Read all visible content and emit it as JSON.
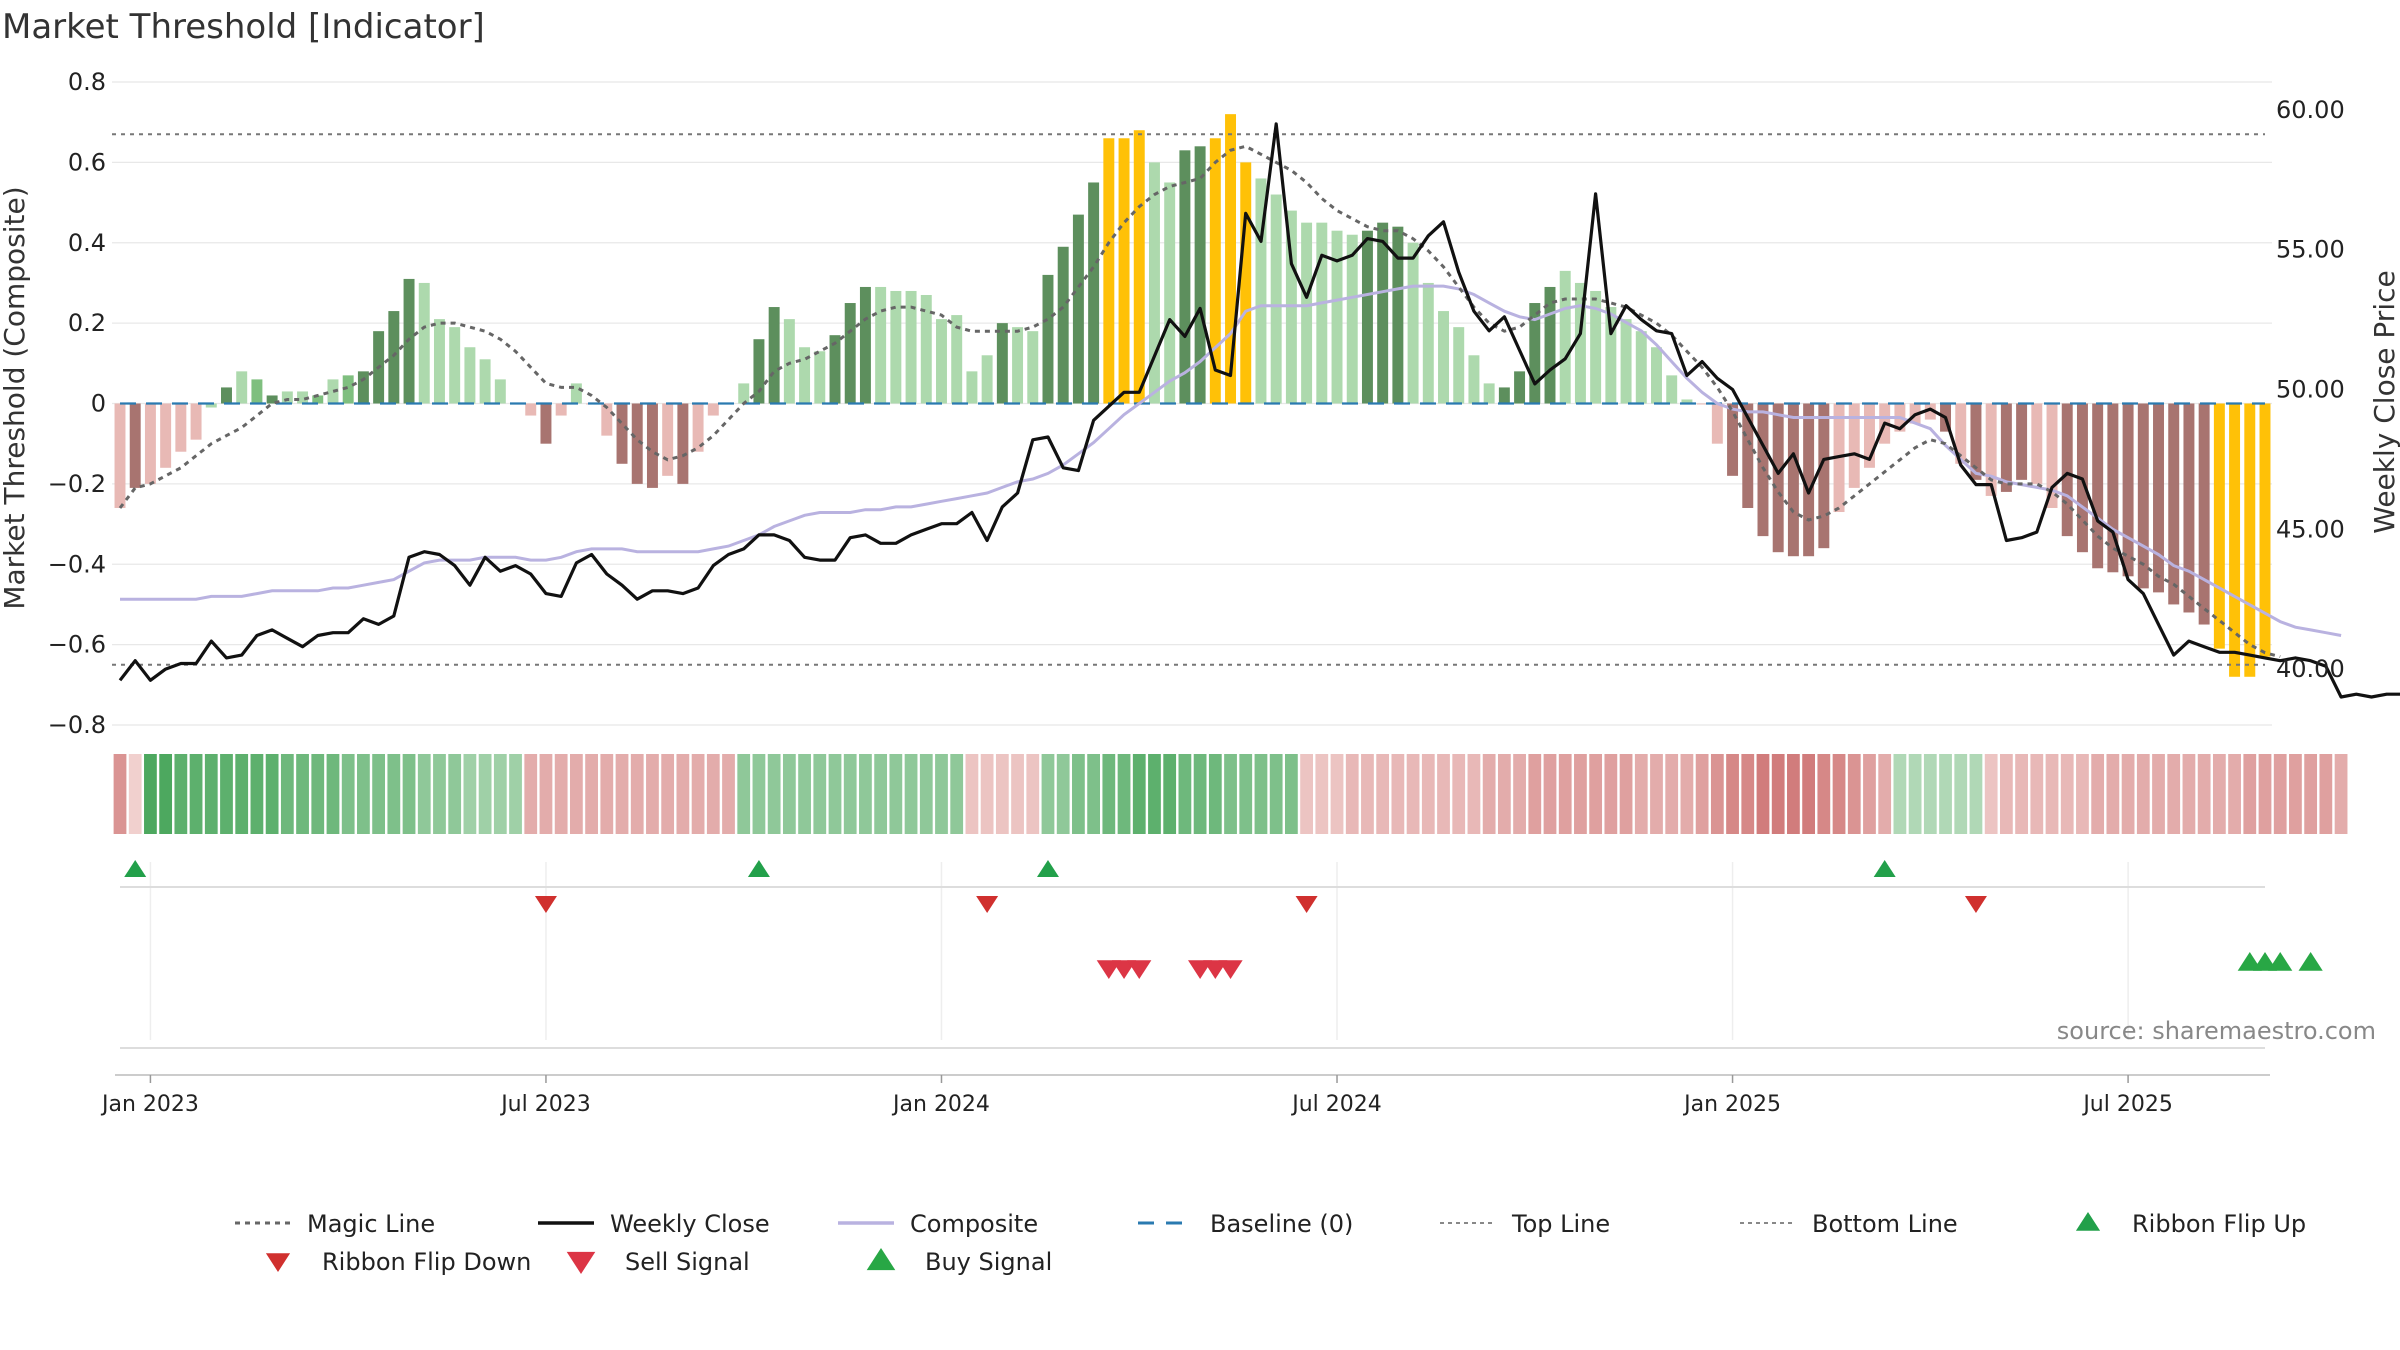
{
  "chart_data": {
    "type": "bar",
    "title": "Market Threshold [Indicator]",
    "ylabel_left": "Market Threshold (Composite)",
    "ylabel_right": "Weekly Close Price",
    "ylim_left": [
      -0.8,
      0.8
    ],
    "ylim_right": [
      38.0,
      61.0
    ],
    "yticks_left": [
      "0.8",
      "0.6",
      "0.4",
      "0.2",
      "0",
      "−0.2",
      "−0.4",
      "−0.6",
      "−0.8"
    ],
    "yticks_right": [
      "60.00",
      "55.00",
      "50.00",
      "45.00",
      "40.00"
    ],
    "xticks": [
      {
        "label": "Jan 2023",
        "index": 2
      },
      {
        "label": "Jul 2023",
        "index": 28
      },
      {
        "label": "Jan 2024",
        "index": 54
      },
      {
        "label": "Jul 2024",
        "index": 80
      },
      {
        "label": "Jan 2025",
        "index": 106
      },
      {
        "label": "Jul 2025",
        "index": 132
      }
    ],
    "top_line": 0.67,
    "bottom_line": -0.65,
    "composite": [
      -0.26,
      -0.21,
      -0.2,
      -0.16,
      -0.12,
      -0.09,
      -0.01,
      0.04,
      0.08,
      0.06,
      0.02,
      0.03,
      0.03,
      0.02,
      0.06,
      0.07,
      0.08,
      0.18,
      0.23,
      0.31,
      0.3,
      0.21,
      0.19,
      0.14,
      0.11,
      0.06,
      0.0,
      -0.03,
      -0.1,
      -0.03,
      0.05,
      0.0,
      -0.08,
      -0.15,
      -0.2,
      -0.21,
      -0.18,
      -0.2,
      -0.12,
      -0.03,
      0.0,
      0.05,
      0.16,
      0.24,
      0.21,
      0.14,
      0.13,
      0.17,
      0.25,
      0.29,
      0.29,
      0.28,
      0.28,
      0.27,
      0.21,
      0.22,
      0.08,
      0.12,
      0.2,
      0.19,
      0.18,
      0.32,
      0.39,
      0.47,
      0.55,
      0.66,
      0.66,
      0.68,
      0.6,
      0.55,
      0.63,
      0.64,
      0.66,
      0.72,
      0.6,
      0.56,
      0.52,
      0.48,
      0.45,
      0.45,
      0.43,
      0.42,
      0.43,
      0.45,
      0.44,
      0.4,
      0.3,
      0.23,
      0.19,
      0.12,
      0.05,
      0.04,
      0.08,
      0.25,
      0.29,
      0.33,
      0.3,
      0.28,
      0.24,
      0.21,
      0.18,
      0.14,
      0.07,
      0.01,
      0.0,
      -0.1,
      -0.18,
      -0.26,
      -0.33,
      -0.37,
      -0.38,
      -0.38,
      -0.36,
      -0.27,
      -0.21,
      -0.16,
      -0.1,
      -0.07,
      -0.05,
      -0.04,
      -0.07,
      -0.15,
      -0.19,
      -0.23,
      -0.22,
      -0.19,
      -0.2,
      -0.26,
      -0.33,
      -0.37,
      -0.41,
      -0.42,
      -0.43,
      -0.46,
      -0.47,
      -0.5,
      -0.52,
      -0.55,
      -0.61,
      -0.68,
      -0.68,
      -0.63
    ],
    "bar_classes": [
      "nl",
      "nd",
      "nl",
      "nl",
      "nl",
      "nl",
      "pl",
      "pd",
      "pl",
      "pm",
      "pd",
      "pl",
      "pl",
      "pm",
      "pl",
      "pm",
      "pd",
      "pd",
      "pd",
      "pd",
      "pl",
      "pl",
      "pl",
      "pl",
      "pl",
      "pl",
      "pl",
      "nl",
      "nd",
      "nl",
      "pl",
      "nl",
      "nl",
      "nd",
      "nd",
      "nd",
      "nl",
      "nd",
      "nl",
      "nl",
      "pl",
      "pl",
      "pd",
      "pd",
      "pl",
      "pl",
      "pl",
      "pd",
      "pd",
      "pd",
      "pl",
      "pl",
      "pl",
      "pl",
      "pl",
      "pl",
      "pl",
      "pl",
      "pd",
      "pl",
      "pl",
      "pd",
      "pd",
      "pd",
      "pd",
      "y",
      "y",
      "y",
      "pl",
      "pl",
      "pd",
      "pd",
      "y",
      "y",
      "y",
      "pl",
      "pl",
      "pl",
      "pl",
      "pl",
      "pl",
      "pl",
      "pd",
      "pd",
      "pd",
      "pl",
      "pl",
      "pl",
      "pl",
      "pl",
      "pl",
      "pd",
      "pd",
      "pd",
      "pd",
      "pl",
      "pl",
      "pl",
      "pl",
      "pl",
      "pl",
      "pl",
      "pl",
      "pl",
      "nl",
      "nl",
      "nd",
      "nd",
      "nd",
      "nd",
      "nd",
      "nd",
      "nd",
      "nl",
      "nl",
      "nl",
      "nl",
      "nl",
      "nl",
      "nl",
      "nd",
      "nl",
      "nd",
      "nl",
      "nd",
      "nd",
      "nl",
      "nl",
      "nd",
      "nd",
      "nd",
      "nd",
      "nd",
      "nd",
      "nd",
      "nd",
      "nd",
      "nd",
      "y",
      "y",
      "y",
      "y"
    ],
    "weekly_close": [
      39.6,
      40.3,
      39.6,
      40.0,
      40.2,
      40.2,
      41.0,
      40.4,
      40.5,
      41.2,
      41.4,
      41.1,
      40.8,
      41.2,
      41.3,
      41.3,
      41.8,
      41.6,
      41.9,
      44.0,
      44.2,
      44.1,
      43.7,
      43.0,
      44.0,
      43.5,
      43.7,
      43.4,
      42.7,
      42.6,
      43.8,
      44.1,
      43.4,
      43.0,
      42.5,
      42.8,
      42.8,
      42.7,
      42.9,
      43.7,
      44.1,
      44.3,
      44.8,
      44.8,
      44.6,
      44.0,
      43.9,
      43.9,
      44.7,
      44.8,
      44.5,
      44.5,
      44.8,
      45.0,
      45.2,
      45.2,
      45.6,
      44.6,
      45.8,
      46.3,
      48.2,
      48.3,
      47.2,
      47.1,
      48.9,
      49.4,
      49.9,
      49.9,
      51.2,
      52.5,
      51.9,
      52.9,
      50.7,
      50.5,
      56.3,
      55.3,
      59.5,
      54.5,
      53.3,
      54.8,
      54.6,
      54.8,
      55.4,
      55.3,
      54.7,
      54.7,
      55.5,
      56.0,
      54.2,
      52.8,
      52.1,
      52.6,
      51.4,
      50.2,
      50.7,
      51.1,
      52.0,
      57.0,
      52.0,
      53.0,
      52.5,
      52.1,
      52.0,
      50.5,
      51.0,
      50.4,
      50.0,
      49.0,
      48.0,
      47.0,
      47.7,
      46.3,
      47.5,
      47.6,
      47.7,
      47.5,
      48.8,
      48.6,
      49.1,
      49.3,
      49.0,
      47.3,
      46.6,
      46.6,
      44.6,
      44.7,
      44.9,
      46.5,
      47.0,
      46.8,
      45.3,
      44.9,
      43.2,
      42.7,
      41.6,
      40.5,
      41.0,
      40.8,
      40.6,
      40.6,
      40.5,
      40.4,
      40.3,
      40.4,
      40.3,
      40.1,
      39.0,
      39.1,
      39.0,
      39.1,
      39.1
    ],
    "magic_line": [
      -0.26,
      -0.21,
      -0.2,
      -0.18,
      -0.16,
      -0.13,
      -0.1,
      -0.08,
      -0.06,
      -0.03,
      0.0,
      0.01,
      0.01,
      0.02,
      0.03,
      0.04,
      0.06,
      0.09,
      0.12,
      0.16,
      0.19,
      0.2,
      0.2,
      0.19,
      0.18,
      0.16,
      0.13,
      0.09,
      0.05,
      0.04,
      0.04,
      0.02,
      -0.01,
      -0.05,
      -0.09,
      -0.12,
      -0.14,
      -0.13,
      -0.11,
      -0.08,
      -0.04,
      0.0,
      0.03,
      0.08,
      0.1,
      0.11,
      0.13,
      0.15,
      0.18,
      0.21,
      0.23,
      0.24,
      0.24,
      0.23,
      0.22,
      0.19,
      0.18,
      0.18,
      0.18,
      0.18,
      0.19,
      0.21,
      0.24,
      0.29,
      0.34,
      0.4,
      0.45,
      0.49,
      0.52,
      0.54,
      0.55,
      0.56,
      0.6,
      0.63,
      0.64,
      0.62,
      0.6,
      0.58,
      0.55,
      0.51,
      0.48,
      0.46,
      0.44,
      0.43,
      0.43,
      0.41,
      0.38,
      0.34,
      0.29,
      0.24,
      0.2,
      0.18,
      0.19,
      0.22,
      0.25,
      0.26,
      0.26,
      0.26,
      0.25,
      0.24,
      0.22,
      0.2,
      0.17,
      0.13,
      0.09,
      0.04,
      -0.02,
      -0.09,
      -0.16,
      -0.22,
      -0.27,
      -0.29,
      -0.28,
      -0.26,
      -0.23,
      -0.2,
      -0.17,
      -0.14,
      -0.11,
      -0.09,
      -0.1,
      -0.13,
      -0.16,
      -0.19,
      -0.2,
      -0.2,
      -0.2,
      -0.22,
      -0.25,
      -0.29,
      -0.33,
      -0.36,
      -0.38,
      -0.4,
      -0.43,
      -0.45,
      -0.48,
      -0.51,
      -0.54,
      -0.57,
      -0.6,
      -0.62,
      -0.63
    ],
    "composite_smooth": [
      42.5,
      42.5,
      42.5,
      42.5,
      42.5,
      42.5,
      42.6,
      42.6,
      42.6,
      42.7,
      42.8,
      42.8,
      42.8,
      42.8,
      42.9,
      42.9,
      43.0,
      43.1,
      43.2,
      43.5,
      43.8,
      43.9,
      43.9,
      43.9,
      44.0,
      44.0,
      44.0,
      43.9,
      43.9,
      44.0,
      44.2,
      44.3,
      44.3,
      44.3,
      44.2,
      44.2,
      44.2,
      44.2,
      44.2,
      44.3,
      44.4,
      44.6,
      44.8,
      45.1,
      45.3,
      45.5,
      45.6,
      45.6,
      45.6,
      45.7,
      45.7,
      45.8,
      45.8,
      45.9,
      46.0,
      46.1,
      46.2,
      46.3,
      46.5,
      46.7,
      46.8,
      47.0,
      47.3,
      47.7,
      48.1,
      48.6,
      49.1,
      49.5,
      49.9,
      50.3,
      50.6,
      51.0,
      51.5,
      52.0,
      52.8,
      53.0,
      53.0,
      53.0,
      53.0,
      53.1,
      53.2,
      53.3,
      53.4,
      53.5,
      53.6,
      53.7,
      53.7,
      53.7,
      53.6,
      53.4,
      53.1,
      52.8,
      52.6,
      52.5,
      52.7,
      52.9,
      53.0,
      52.9,
      52.7,
      52.4,
      52.1,
      51.6,
      51.0,
      50.4,
      49.9,
      49.5,
      49.3,
      49.2,
      49.2,
      49.1,
      49.0,
      49.0,
      49.0,
      49.0,
      49.0,
      49.0,
      49.0,
      49.0,
      48.8,
      48.6,
      48.0,
      47.5,
      47.0,
      46.9,
      46.7,
      46.6,
      46.5,
      46.4,
      46.2,
      45.8,
      45.4,
      45.0,
      44.7,
      44.4,
      44.1,
      43.7,
      43.5,
      43.2,
      42.9,
      42.6,
      42.3,
      42.0,
      41.7,
      41.5,
      41.4,
      41.3,
      41.2
    ],
    "ribbon": [
      -0.6,
      -0.1,
      0.9,
      0.9,
      0.8,
      0.8,
      0.8,
      0.8,
      0.8,
      0.8,
      0.8,
      0.7,
      0.7,
      0.7,
      0.7,
      0.6,
      0.6,
      0.6,
      0.6,
      0.6,
      0.5,
      0.5,
      0.5,
      0.4,
      0.4,
      0.4,
      0.4,
      -0.4,
      -0.4,
      -0.4,
      -0.4,
      -0.4,
      -0.4,
      -0.4,
      -0.4,
      -0.4,
      -0.4,
      -0.4,
      -0.4,
      -0.4,
      -0.4,
      0.5,
      0.5,
      0.5,
      0.5,
      0.5,
      0.5,
      0.5,
      0.5,
      0.5,
      0.5,
      0.5,
      0.5,
      0.5,
      0.5,
      0.5,
      -0.2,
      -0.2,
      -0.2,
      -0.2,
      -0.2,
      0.5,
      0.5,
      0.6,
      0.6,
      0.7,
      0.7,
      0.8,
      0.8,
      0.8,
      0.7,
      0.7,
      0.7,
      0.6,
      0.6,
      0.6,
      0.6,
      0.6,
      -0.2,
      -0.2,
      -0.2,
      -0.3,
      -0.3,
      -0.3,
      -0.3,
      -0.3,
      -0.3,
      -0.3,
      -0.3,
      -0.3,
      -0.4,
      -0.4,
      -0.4,
      -0.5,
      -0.5,
      -0.5,
      -0.5,
      -0.5,
      -0.5,
      -0.5,
      -0.4,
      -0.4,
      -0.4,
      -0.4,
      -0.5,
      -0.6,
      -0.7,
      -0.7,
      -0.8,
      -0.8,
      -0.8,
      -0.8,
      -0.7,
      -0.7,
      -0.6,
      -0.5,
      -0.4,
      0.3,
      0.3,
      0.3,
      0.3,
      0.3,
      0.3,
      -0.2,
      -0.3,
      -0.3,
      -0.3,
      -0.3,
      -0.3,
      -0.3,
      -0.4,
      -0.4,
      -0.4,
      -0.4,
      -0.4,
      -0.4,
      -0.4,
      -0.4,
      -0.4,
      -0.4,
      -0.5,
      -0.5,
      -0.5,
      -0.5,
      -0.5,
      -0.5,
      -0.4
    ],
    "ribbon_flip_up": [
      1,
      42,
      61,
      116
    ],
    "ribbon_flip_down": [
      28,
      57,
      78,
      122
    ],
    "sell_signals": [
      65,
      66,
      67,
      71,
      72,
      73
    ],
    "buy_signals": [
      140,
      141,
      142,
      144
    ],
    "legend": [
      {
        "label": "Magic Line",
        "kind": "dotted",
        "color": "#666666"
      },
      {
        "label": "Weekly Close",
        "kind": "solid",
        "color": "#111111"
      },
      {
        "label": "Composite",
        "kind": "solid",
        "color": "#b9b2e0"
      },
      {
        "label": "Baseline (0)",
        "kind": "dashed",
        "color": "#2a7ab0"
      },
      {
        "label": "Top Line",
        "kind": "dotted-thin",
        "color": "#888888"
      },
      {
        "label": "Bottom Line",
        "kind": "dotted-thin",
        "color": "#888888"
      },
      {
        "label": "Ribbon Flip Up",
        "kind": "tri-up",
        "color": "#22a04a"
      },
      {
        "label": "Ribbon Flip Down",
        "kind": "tri-down",
        "color": "#d0302e"
      },
      {
        "label": "Sell Signal",
        "kind": "tri-down-big",
        "color": "#dc3545"
      },
      {
        "label": "Buy Signal",
        "kind": "tri-up-big",
        "color": "#28a745"
      }
    ],
    "source": "source: sharemaestro.com",
    "colors": {
      "pos_dark": "#5d8f5d",
      "pos_mid": "#7fbf7f",
      "pos_light": "#add9ad",
      "neg_dark": "#a87470",
      "neg_light": "#e8b9b5",
      "highlight": "#ffc107"
    }
  }
}
